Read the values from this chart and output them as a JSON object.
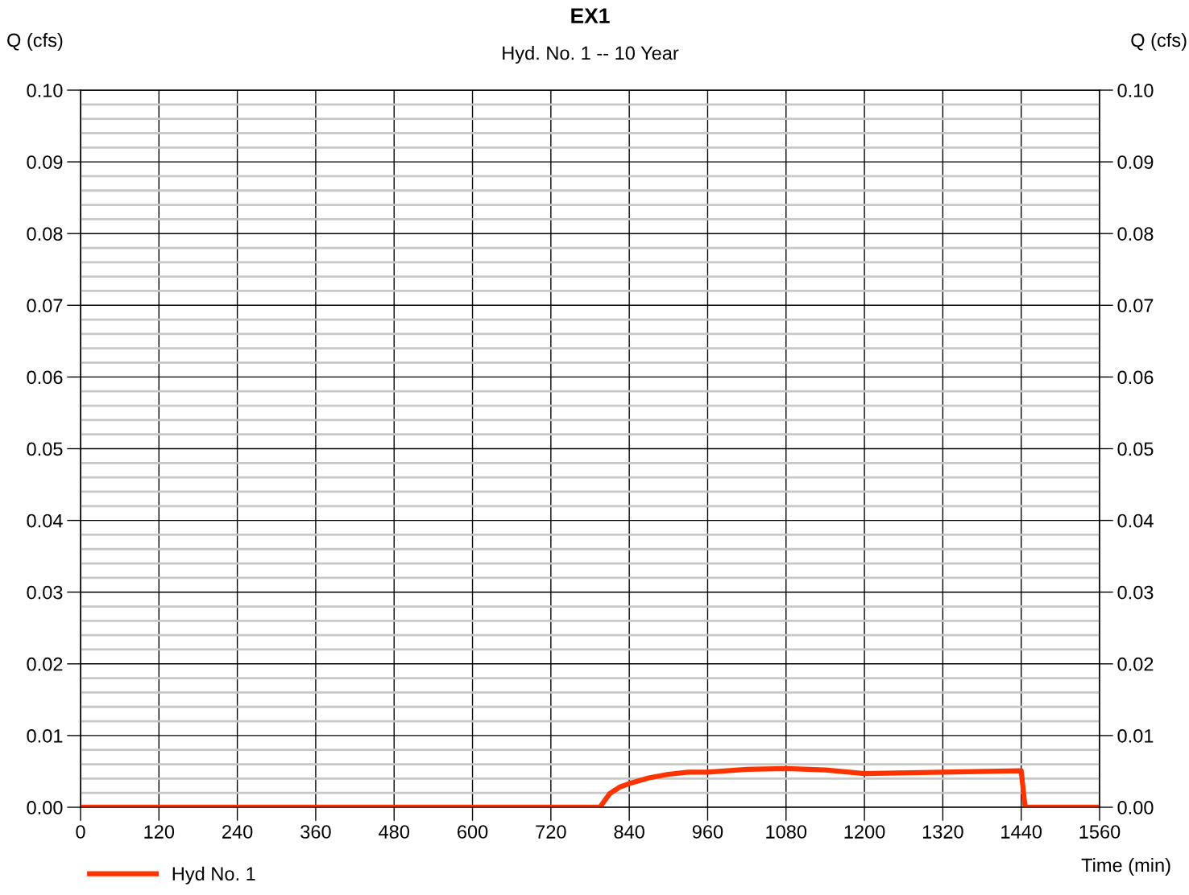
{
  "chart_data": {
    "type": "line",
    "title": "EX1",
    "subtitle": "Hyd. No. 1 -- 10 Year",
    "xlabel": "Time (min)",
    "ylabel": "Q (cfs)",
    "y2label": "Q (cfs)",
    "x": [
      0,
      795,
      810,
      825,
      840,
      870,
      900,
      930,
      960,
      1020,
      1080,
      1140,
      1200,
      1320,
      1440,
      1446,
      1560
    ],
    "series": [
      {
        "name": "Hyd No. 1",
        "color": "#ff3300",
        "values": [
          0,
          0,
          0.0019,
          0.0028,
          0.0033,
          0.0041,
          0.0046,
          0.0049,
          0.0049,
          0.0053,
          0.0054,
          0.0052,
          0.0047,
          0.0049,
          0.0051,
          0,
          0
        ]
      }
    ],
    "xlim": [
      0,
      1560
    ],
    "xticks": [
      0,
      120,
      240,
      360,
      480,
      600,
      720,
      840,
      960,
      1080,
      1200,
      1320,
      1440,
      1560
    ],
    "ylim": [
      0,
      0.1
    ],
    "yticks": [
      {
        "value": 0,
        "label": "0.00"
      },
      0.01,
      0.02,
      0.03,
      0.04,
      0.05,
      0.06,
      0.07,
      0.08,
      0.09,
      {
        "value": 0.1,
        "label": "0.10"
      }
    ],
    "y2lim": [
      0,
      0.1
    ],
    "y2ticks": [
      {
        "value": 0,
        "label": "0.00"
      },
      0.01,
      0.02,
      0.03,
      0.04,
      0.05,
      0.06,
      0.07,
      0.08,
      0.09,
      {
        "value": 0.1,
        "label": "0.10"
      }
    ],
    "grid": true,
    "legend": "bottom left",
    "marker": "none",
    "line_style": "solid"
  }
}
